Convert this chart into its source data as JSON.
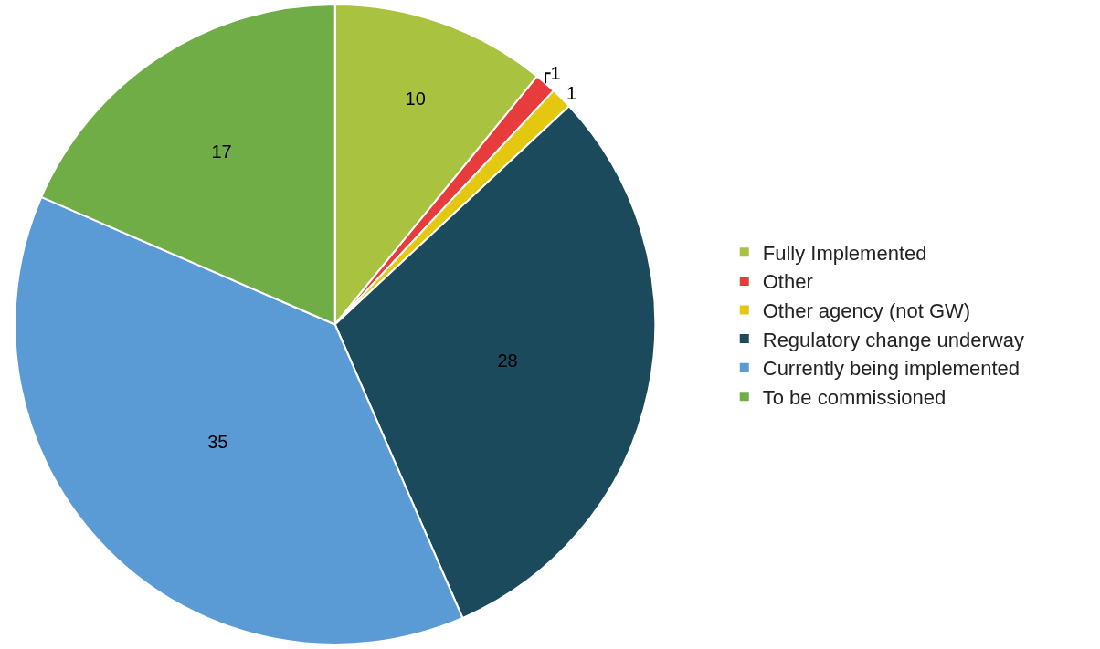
{
  "chart_data": {
    "type": "pie",
    "categories": [
      "Fully Implemented",
      "Other",
      "Other agency (not GW)",
      "Regulatory change underway",
      "Currently being implemented",
      "To be commissioned"
    ],
    "values": [
      10,
      1,
      1,
      28,
      35,
      17
    ],
    "colors": [
      "#a9c23f",
      "#e83c3c",
      "#e3c80f",
      "#1b4a5c",
      "#5b9bd5",
      "#70ad47"
    ],
    "data_labels": true,
    "legend": "right"
  }
}
